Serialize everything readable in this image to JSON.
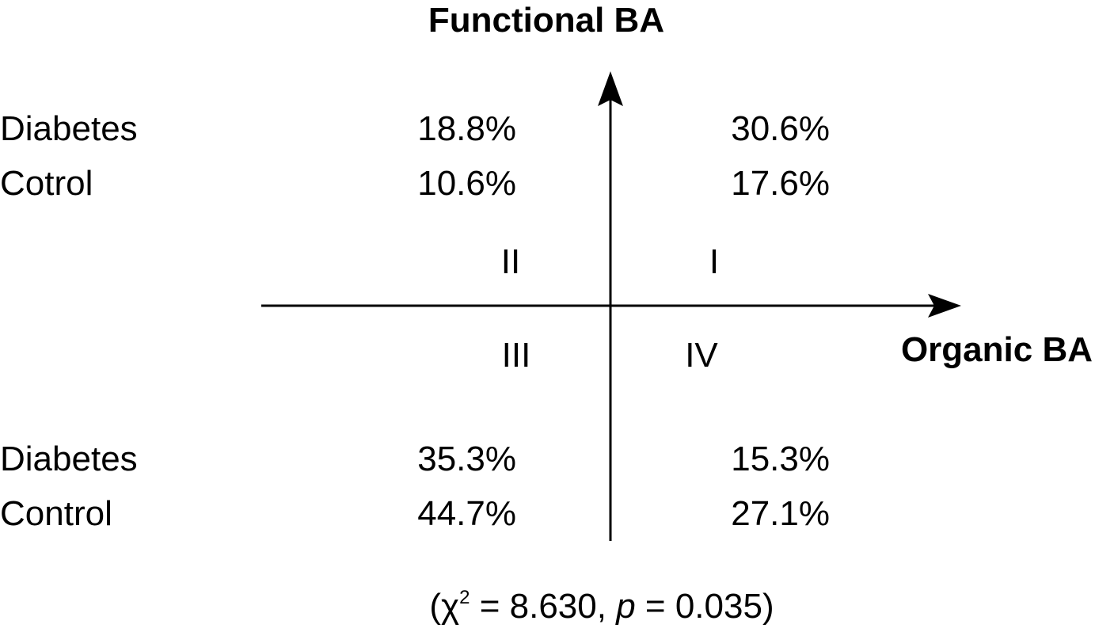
{
  "diagram": {
    "y_axis_label": "Functional BA",
    "x_axis_label": "Organic BA",
    "quadrants": {
      "I": {
        "label": "I",
        "rows": [
          {
            "group": "Diabetes",
            "value": "30.6%"
          },
          {
            "group": "Cotrol",
            "value": "17.6%"
          }
        ]
      },
      "II": {
        "label": "II",
        "rows": [
          {
            "group": "Diabetes",
            "value": "18.8%"
          },
          {
            "group": "Cotrol",
            "value": "10.6%"
          }
        ]
      },
      "III": {
        "label": "III",
        "rows": [
          {
            "group": "Diabetes",
            "value": "35.3%"
          },
          {
            "group": "Control",
            "value": "44.7%"
          }
        ]
      },
      "IV": {
        "label": "IV",
        "rows": [
          {
            "group": "Diabetes",
            "value": "15.3%"
          },
          {
            "group": "Control",
            "value": "27.1%"
          }
        ]
      }
    },
    "footnote": [
      "(χ",
      "2",
      " = 8.630, ",
      "p",
      " = 0.035)"
    ]
  }
}
